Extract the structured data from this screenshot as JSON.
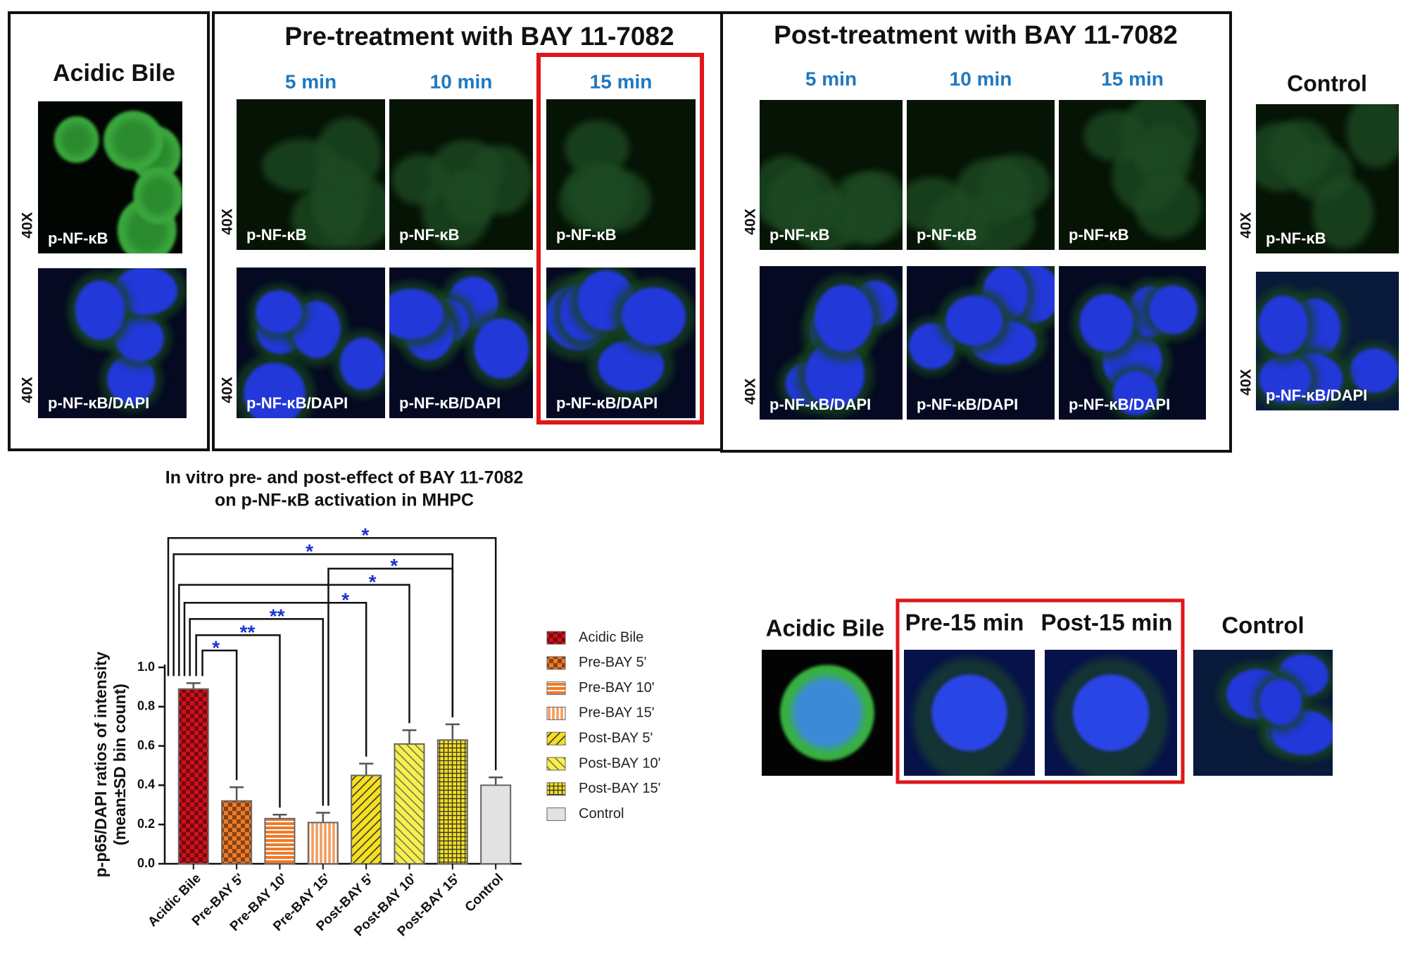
{
  "top": {
    "acidic_bile": {
      "title": "Acidic Bile",
      "magnification": "40X",
      "stains": [
        "p-NF-κB",
        "p-NF-κB/DAPI"
      ]
    },
    "pre_treatment": {
      "title": "Pre-treatment with BAY 11-7082",
      "times": [
        "5 min",
        "10 min",
        "15 min"
      ],
      "magnification": "40X",
      "stains": [
        "p-NF-κB",
        "p-NF-κB/DAPI"
      ]
    },
    "post_treatment": {
      "title": "Post-treatment with BAY 11-7082",
      "times": [
        "5 min",
        "10 min",
        "15 min"
      ],
      "magnification": "40X",
      "stains": [
        "p-NF-κB",
        "p-NF-κB/DAPI"
      ]
    },
    "control": {
      "title": "Control",
      "magnification": "40X",
      "stains": [
        "p-NF-κB",
        "p-NF-κB/DAPI"
      ]
    }
  },
  "zoom": {
    "labels": [
      "Acidic Bile",
      "Pre-15 min",
      "Post-15 min",
      "Control"
    ]
  },
  "chart_data": {
    "type": "bar",
    "title": [
      "In vitro pre- and post-effect of BAY 11-7082",
      "on p-NF-κB activation in MHPC"
    ],
    "y_label": [
      "p-p65/DAPI ratios of  intensity",
      "(mean±SD bin count)"
    ],
    "categories": [
      "Acidic Bile",
      "Pre-BAY 5'",
      "Pre-BAY 10'",
      "Pre-BAY 15'",
      "Post-BAY 5'",
      "Post-BAY 10'",
      "Post-BAY 15'",
      "Control"
    ],
    "values": [
      0.89,
      0.32,
      0.23,
      0.21,
      0.45,
      0.61,
      0.63,
      0.4
    ],
    "errors": [
      0.03,
      0.07,
      0.02,
      0.05,
      0.06,
      0.07,
      0.08,
      0.04
    ],
    "colors": [
      "#d0101a",
      "#f07a28",
      "#f07a28",
      "#f39a5a",
      "#f5df1e",
      "#f7ef4a",
      "#f5df1e",
      "#e2e2e2"
    ],
    "patterns": [
      "checker",
      "checker",
      "hstripe",
      "vstripe",
      "diag",
      "antidiag",
      "grid",
      "solid"
    ],
    "ylim": [
      0,
      1.0
    ],
    "yticks": [
      {
        "value": 0,
        "label": "0.0"
      },
      0.2,
      0.4,
      0.6,
      0.8,
      {
        "value": 1.0,
        "label": "1.0"
      }
    ],
    "significance": [
      "*",
      "**",
      "**",
      "*",
      "*",
      "*",
      "*",
      "*"
    ],
    "legend": "right"
  }
}
